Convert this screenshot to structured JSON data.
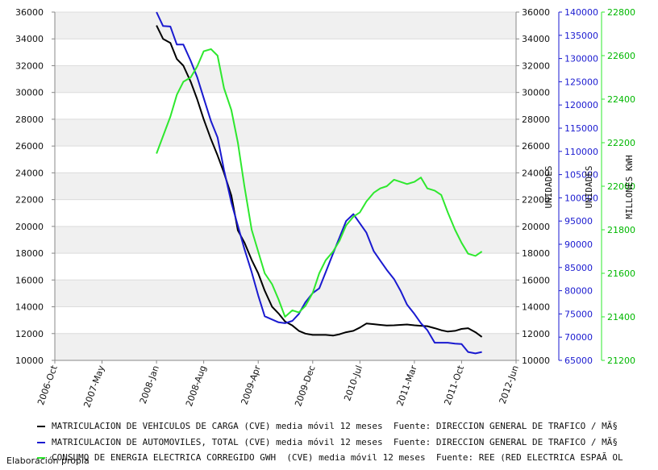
{
  "chart_data": {
    "type": "line",
    "x_ticks": [
      "2006-Oct",
      "2007-May",
      "2008-Jan",
      "2008-Aug",
      "2009-Apr",
      "2009-Dec",
      "2010-Jul",
      "2011-Mar",
      "2011-Oct",
      "2012-Jun"
    ],
    "y_left": {
      "ticks": [
        "10000",
        "12000",
        "14000",
        "16000",
        "18000",
        "20000",
        "22000",
        "24000",
        "26000",
        "28000",
        "30000",
        "32000",
        "34000",
        "36000"
      ],
      "ylim": [
        10000,
        36000
      ]
    },
    "y_right1": {
      "label": "UNIDADES",
      "ticks": [
        "10000",
        "12000",
        "14000",
        "16000",
        "18000",
        "20000",
        "22000",
        "24000",
        "26000",
        "28000",
        "30000",
        "32000",
        "34000",
        "36000"
      ],
      "ylim": [
        10000,
        36000
      ]
    },
    "y_right2": {
      "label": "UNIDADES",
      "ticks": [
        "65000",
        "70000",
        "75000",
        "80000",
        "85000",
        "90000",
        "95000",
        "100000",
        "105000",
        "110000",
        "115000",
        "120000",
        "125000",
        "130000",
        "135000",
        "140000"
      ],
      "ylim": [
        65000,
        140000
      ]
    },
    "y_right3": {
      "label": "MILLONES KWH",
      "ticks": [
        "21200",
        "21400",
        "21600",
        "21800",
        "22000",
        "22200",
        "22400",
        "22600",
        "22800"
      ],
      "ylim": [
        21200,
        22800
      ]
    },
    "series": [
      {
        "name": "carga",
        "color": "#000000",
        "axis": "left",
        "x": [
          2008.0,
          2008.08,
          2008.17,
          2008.25,
          2008.33,
          2008.42,
          2008.5,
          2008.58,
          2008.67,
          2008.75,
          2008.83,
          2008.92,
          2009.0,
          2009.08,
          2009.17,
          2009.25,
          2009.33,
          2009.42,
          2009.5,
          2009.58,
          2009.67,
          2009.75,
          2009.83,
          2009.92,
          2010.0,
          2010.08,
          2010.17,
          2010.25,
          2010.33,
          2010.42,
          2010.5,
          2010.58,
          2010.67,
          2010.75,
          2010.83,
          2010.92,
          2011.0,
          2011.08,
          2011.17,
          2011.25,
          2011.33,
          2011.42,
          2011.5,
          2011.58,
          2011.67,
          2011.75,
          2011.83,
          2011.92,
          2012.0
        ],
        "values": [
          35000,
          34000,
          33700,
          32500,
          32000,
          30800,
          29500,
          28000,
          26500,
          25300,
          24000,
          22300,
          19700,
          18800,
          17500,
          16500,
          15200,
          14000,
          13500,
          12900,
          12600,
          12200,
          12000,
          11900,
          11900,
          11900,
          11850,
          11950,
          12100,
          12200,
          12450,
          12750,
          12700,
          12650,
          12600,
          12620,
          12650,
          12680,
          12620,
          12580,
          12550,
          12400,
          12250,
          12150,
          12200,
          12350,
          12400,
          12100,
          11750
        ]
      },
      {
        "name": "automoviles",
        "color": "#1a1ad0",
        "axis": "right2",
        "x": [
          2008.0,
          2008.08,
          2008.17,
          2008.25,
          2008.33,
          2008.42,
          2008.5,
          2008.58,
          2008.67,
          2008.75,
          2008.83,
          2008.92,
          2009.0,
          2009.08,
          2009.17,
          2009.25,
          2009.33,
          2009.42,
          2009.5,
          2009.58,
          2009.67,
          2009.75,
          2009.83,
          2009.92,
          2010.0,
          2010.08,
          2010.17,
          2010.25,
          2010.33,
          2010.42,
          2010.5,
          2010.58,
          2010.67,
          2010.75,
          2010.83,
          2010.92,
          2011.0,
          2011.08,
          2011.17,
          2011.25,
          2011.33,
          2011.42,
          2011.5,
          2011.58,
          2011.67,
          2011.75,
          2011.83,
          2011.92,
          2012.0
        ],
        "values": [
          140000,
          137000,
          136900,
          133000,
          133000,
          129500,
          126000,
          121500,
          116500,
          113000,
          106000,
          99000,
          94000,
          89000,
          84000,
          79000,
          74500,
          73800,
          73200,
          73000,
          73500,
          75000,
          77500,
          79500,
          80500,
          84000,
          88000,
          91500,
          95000,
          96500,
          94500,
          92500,
          88500,
          86500,
          84500,
          82500,
          80000,
          77000,
          75000,
          73000,
          71500,
          68800,
          68800,
          68800,
          68600,
          68500,
          66800,
          66500,
          66800
        ]
      },
      {
        "name": "consumo",
        "color": "#2ee82e",
        "axis": "right3",
        "x": [
          2008.0,
          2008.08,
          2008.17,
          2008.25,
          2008.33,
          2008.42,
          2008.5,
          2008.58,
          2008.67,
          2008.75,
          2008.83,
          2008.92,
          2009.0,
          2009.08,
          2009.17,
          2009.25,
          2009.33,
          2009.42,
          2009.5,
          2009.58,
          2009.67,
          2009.75,
          2009.83,
          2009.92,
          2010.0,
          2010.08,
          2010.17,
          2010.25,
          2010.33,
          2010.42,
          2010.5,
          2010.58,
          2010.67,
          2010.75,
          2010.83,
          2010.92,
          2011.0,
          2011.08,
          2011.17,
          2011.25,
          2011.33,
          2011.42,
          2011.5,
          2011.58,
          2011.67,
          2011.75,
          2011.83,
          2011.92,
          2012.0
        ],
        "values": [
          22150,
          22230,
          22320,
          22420,
          22480,
          22500,
          22550,
          22620,
          22630,
          22600,
          22450,
          22350,
          22200,
          22000,
          21800,
          21700,
          21600,
          21550,
          21480,
          21400,
          21430,
          21420,
          21450,
          21510,
          21600,
          21660,
          21700,
          21750,
          21820,
          21860,
          21880,
          21930,
          21970,
          21990,
          22000,
          22030,
          22020,
          22010,
          22020,
          22040,
          21990,
          21980,
          21960,
          21880,
          21800,
          21740,
          21690,
          21680,
          21700
        ]
      }
    ]
  },
  "legend": [
    {
      "color": "#000000",
      "text": "MATRICULACION DE VEHICULOS DE CARGA (CVE) media móvil 12 meses  Fuente: DIRECCION GENERAL DE TRAFICO / MÃ§"
    },
    {
      "color": "#1a1ad0",
      "text": "MATRICULACION DE AUTOMOVILES, TOTAL (CVE) media móvil 12 meses  Fuente: DIRECCION GENERAL DE TRAFICO / MÃ§"
    },
    {
      "color": "#2ee82e",
      "text": "CONSUMO DE ENERGIA ELECTRICA CORREGIDO GWH  (CVE) media móvil 12 meses  Fuente: REE (RED ELECTRICA ESPAÃ OL"
    }
  ],
  "source": "Elaboración propia"
}
